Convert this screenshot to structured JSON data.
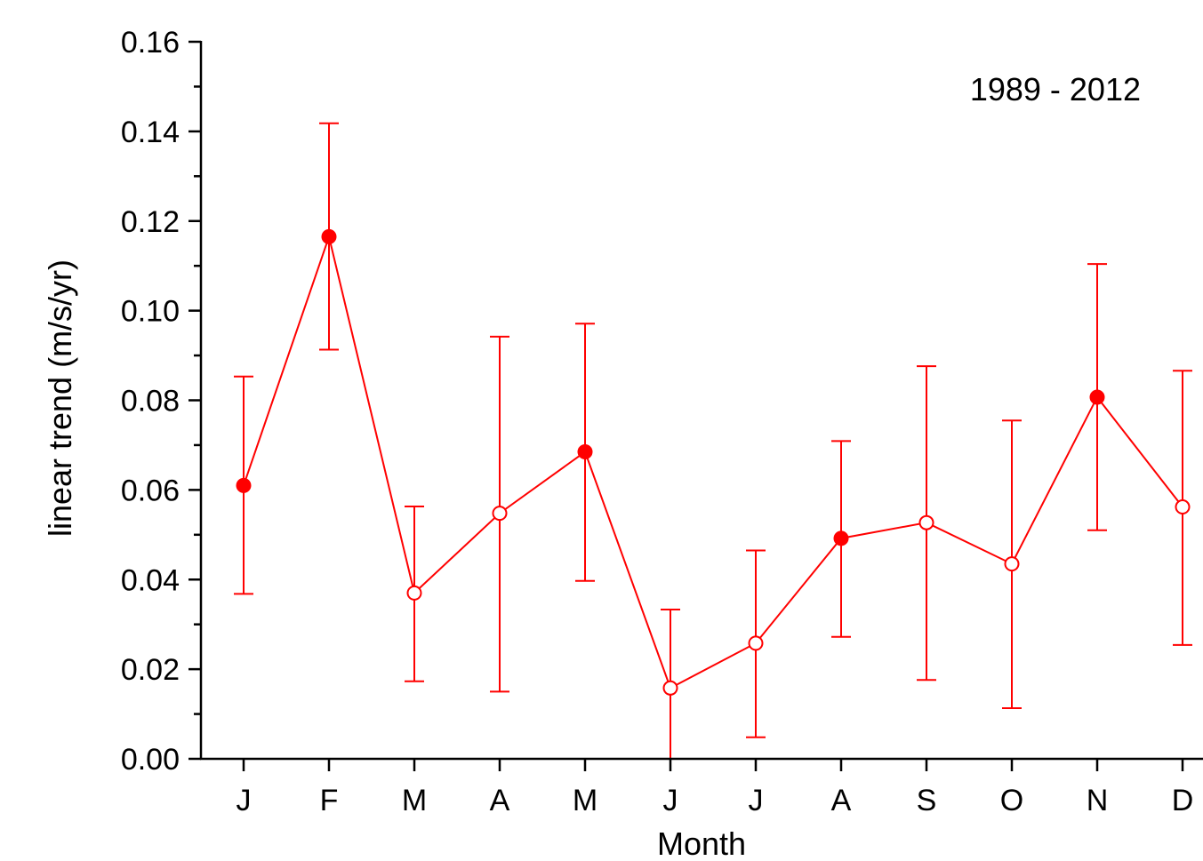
{
  "chart_data": {
    "type": "line",
    "title": "",
    "annotation": "1989 - 2012",
    "xlabel": "Month",
    "ylabel": "linear trend (m/s/yr)",
    "categories": [
      "J",
      "F",
      "M",
      "A",
      "M",
      "J",
      "J",
      "A",
      "S",
      "O",
      "N",
      "D"
    ],
    "ylim": [
      0.0,
      0.16
    ],
    "yticks": [
      "0.00",
      "0.02",
      "0.04",
      "0.06",
      "0.08",
      "0.10",
      "0.12",
      "0.14",
      "0.16"
    ],
    "grid": false,
    "legend": "none",
    "series": [
      {
        "values": [
          0.061,
          0.1165,
          0.037,
          0.0548,
          0.0685,
          0.0158,
          0.0258,
          0.0492,
          0.0527,
          0.0435,
          0.0807,
          0.0562
        ],
        "error_lower": [
          0.0368,
          0.0913,
          0.0173,
          0.015,
          0.0397,
          0.0,
          0.0048,
          0.0272,
          0.0176,
          0.0113,
          0.051,
          0.0254
        ],
        "error_upper": [
          0.0853,
          0.1418,
          0.0563,
          0.0942,
          0.0971,
          0.0333,
          0.0465,
          0.0709,
          0.0876,
          0.0755,
          0.1104,
          0.0866
        ],
        "significant": [
          true,
          true,
          false,
          false,
          true,
          false,
          false,
          true,
          false,
          false,
          true,
          false
        ],
        "color": "#ff0000"
      }
    ]
  }
}
